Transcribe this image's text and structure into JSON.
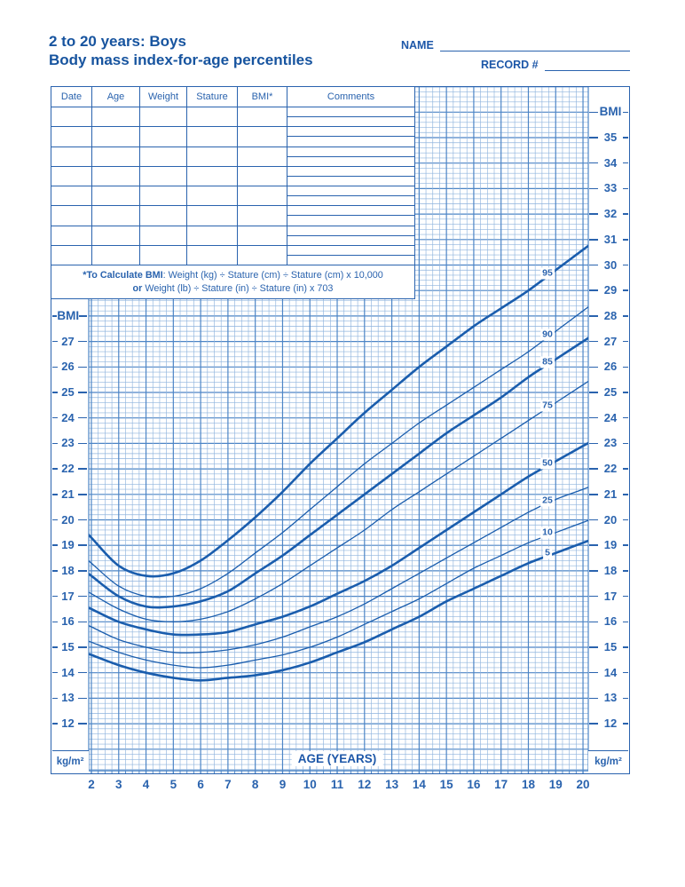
{
  "header": {
    "title_line1": "2 to 20 years: Boys",
    "title_line2": "Body mass index-for-age percentiles",
    "name_label": "NAME",
    "record_label": "RECORD #"
  },
  "table": {
    "headers": [
      "Date",
      "Age",
      "Weight",
      "Stature",
      "BMI*",
      "Comments"
    ],
    "blank_row_count": 8,
    "comment_row_count": 16,
    "note1_bold": "*To Calculate BMI",
    "note1_rest": ": Weight (kg) ÷ Stature (cm) ÷ Stature (cm) x 10,000",
    "note2_bold": "or",
    "note2_rest": " Weight (lb) ÷ Stature (in) ÷ Stature (in) x 703"
  },
  "axes": {
    "bmi_label": "BMI",
    "unit_label": "kg/m²",
    "x_title": "AGE (YEARS)",
    "left_ticks": [
      27,
      26,
      25,
      24,
      23,
      22,
      21,
      20,
      19,
      18,
      17,
      16,
      15,
      14,
      13,
      12
    ],
    "right_ticks": [
      35,
      34,
      33,
      32,
      31,
      30,
      29,
      28,
      27,
      26,
      25,
      24,
      23,
      22,
      21,
      20,
      19,
      18,
      17,
      16,
      15,
      14,
      13,
      12
    ],
    "age_ticks": [
      2,
      3,
      4,
      5,
      6,
      7,
      8,
      9,
      10,
      11,
      12,
      13,
      14,
      15,
      16,
      17,
      18,
      19,
      20
    ]
  },
  "chart_data": {
    "type": "line",
    "title": "Body mass index-for-age percentiles, boys 2 to 20 years",
    "xlabel": "AGE (YEARS)",
    "ylabel": "BMI (kg/m²)",
    "xlim": [
      2,
      20
    ],
    "ylim": [
      10,
      37
    ],
    "y_labeled_range": [
      12,
      35
    ],
    "grid": "on",
    "x": [
      2,
      3,
      4,
      5,
      6,
      7,
      8,
      9,
      10,
      11,
      12,
      13,
      14,
      15,
      16,
      17,
      18,
      19,
      20
    ],
    "series": [
      {
        "name": "95",
        "thick": true,
        "values": [
          19.3,
          18.2,
          17.8,
          17.9,
          18.4,
          19.2,
          20.1,
          21.1,
          22.2,
          23.2,
          24.2,
          25.1,
          26.0,
          26.8,
          27.6,
          28.3,
          29.0,
          29.8,
          30.6
        ]
      },
      {
        "name": "90",
        "thick": false,
        "values": [
          18.3,
          17.4,
          17.0,
          17.0,
          17.3,
          17.9,
          18.7,
          19.5,
          20.4,
          21.3,
          22.2,
          23.0,
          23.8,
          24.5,
          25.2,
          25.9,
          26.6,
          27.4,
          28.2
        ]
      },
      {
        "name": "85",
        "thick": true,
        "values": [
          17.8,
          17.0,
          16.6,
          16.6,
          16.8,
          17.2,
          17.9,
          18.6,
          19.4,
          20.2,
          21.0,
          21.8,
          22.6,
          23.4,
          24.1,
          24.8,
          25.6,
          26.3,
          27.0
        ]
      },
      {
        "name": "75",
        "thick": false,
        "values": [
          17.1,
          16.5,
          16.1,
          16.0,
          16.1,
          16.4,
          16.9,
          17.5,
          18.2,
          18.9,
          19.6,
          20.4,
          21.1,
          21.8,
          22.5,
          23.2,
          23.9,
          24.6,
          25.3
        ]
      },
      {
        "name": "50",
        "thick": true,
        "values": [
          16.5,
          16.0,
          15.7,
          15.5,
          15.5,
          15.6,
          15.9,
          16.2,
          16.6,
          17.1,
          17.6,
          18.2,
          18.9,
          19.6,
          20.3,
          21.0,
          21.7,
          22.3,
          22.9
        ]
      },
      {
        "name": "25",
        "thick": false,
        "values": [
          15.8,
          15.3,
          15.0,
          14.8,
          14.8,
          14.9,
          15.1,
          15.4,
          15.8,
          16.2,
          16.7,
          17.3,
          17.9,
          18.5,
          19.1,
          19.7,
          20.3,
          20.8,
          21.2
        ]
      },
      {
        "name": "10",
        "thick": false,
        "values": [
          15.2,
          14.8,
          14.5,
          14.3,
          14.2,
          14.3,
          14.5,
          14.7,
          15.0,
          15.4,
          15.9,
          16.4,
          16.9,
          17.5,
          18.1,
          18.6,
          19.1,
          19.5,
          19.9
        ]
      },
      {
        "name": "5",
        "thick": true,
        "values": [
          14.7,
          14.3,
          14.0,
          13.8,
          13.7,
          13.8,
          13.9,
          14.1,
          14.4,
          14.8,
          15.2,
          15.7,
          16.2,
          16.8,
          17.3,
          17.8,
          18.3,
          18.7,
          19.1
        ]
      }
    ],
    "curve_label_age": 18.7,
    "legend_position": "on-curve-right"
  },
  "colors": {
    "ink_blue": "#1d57a8",
    "title_blue": "#17549f",
    "curve_blue": "#1a5dad",
    "grid_major": "#4d85c6",
    "grid_minor": "#8fb4de",
    "background": "#ffffff"
  }
}
